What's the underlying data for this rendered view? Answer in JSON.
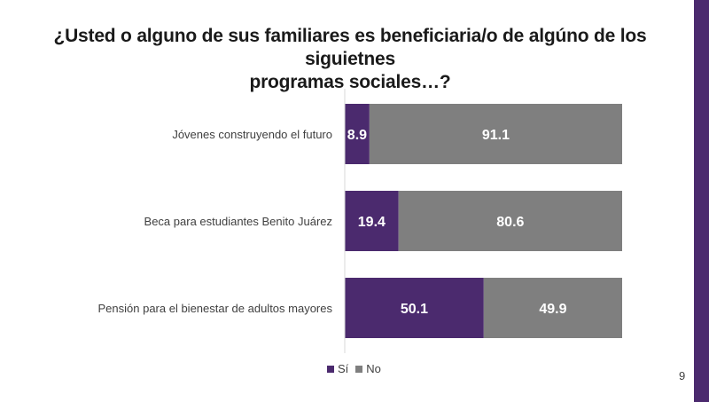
{
  "title": {
    "line1": "¿Usted o alguno de sus familiares es beneficiaria/o de algúno de los siguietnes",
    "line2": "programas sociales…?"
  },
  "page_number": "9",
  "colors": {
    "si": "#4b2a6e",
    "no": "#7f7f7f",
    "accent": "#4b2a6e"
  },
  "chart_data": {
    "type": "bar",
    "orientation": "horizontal",
    "stacked": true,
    "percent_scale": true,
    "categories": [
      "Jóvenes construyendo el futuro",
      "Beca para estudiantes Benito Juárez",
      "Pensión para el bienestar de adultos mayores"
    ],
    "series": [
      {
        "name": "Sí",
        "values": [
          8.9,
          19.4,
          50.1
        ],
        "label_values": [
          "8.9",
          "19.4",
          "50.1"
        ]
      },
      {
        "name": "No",
        "values": [
          91.1,
          80.6,
          49.9
        ],
        "label_values": [
          "91.1",
          "80.6",
          "49.9"
        ]
      }
    ],
    "xlim": [
      0,
      100
    ],
    "legend": {
      "position": "bottom",
      "items": [
        "Sí",
        "No"
      ]
    }
  }
}
